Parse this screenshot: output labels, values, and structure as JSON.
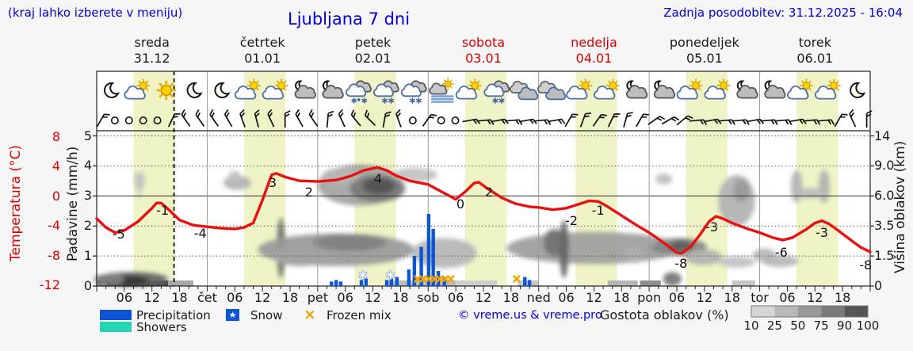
{
  "header": {
    "hint": "(kraj lahko izberete v meniju)",
    "title": "Ljubljana 7 dni",
    "updated": "Zadnja posodobitev: 31.12.2025 - 16:04"
  },
  "days": [
    {
      "name": "sreda",
      "date": "31.12",
      "red": false
    },
    {
      "name": "četrtek",
      "date": "01.01",
      "red": false
    },
    {
      "name": "petek",
      "date": "02.01",
      "red": false
    },
    {
      "name": "sobota",
      "date": "03.01",
      "red": true
    },
    {
      "name": "nedelja",
      "date": "04.01",
      "red": true
    },
    {
      "name": "ponedeljek",
      "date": "05.01",
      "red": false
    },
    {
      "name": "torek",
      "date": "06.01",
      "red": false
    }
  ],
  "axes": {
    "temp": {
      "title": "Temperatura (°C)",
      "ticks": [
        "8",
        "4",
        "0",
        "-4",
        "-8",
        "-12"
      ],
      "values": [
        8,
        4,
        0,
        -4,
        -8,
        -12
      ],
      "color": "#dd0000"
    },
    "precip": {
      "title": "Padavine (mm/h)",
      "ticks": [
        "5",
        "4",
        "3",
        "2",
        "1",
        "0"
      ],
      "values": [
        5,
        4,
        3,
        2,
        1,
        0
      ]
    },
    "cloud": {
      "title": "Višina oblakov (km)",
      "ticks": [
        "14",
        "9.0",
        "6.0",
        "3.5",
        "1.5",
        "0"
      ],
      "values": [
        14,
        9,
        6,
        3.5,
        1.5,
        0
      ]
    },
    "x_labels": [
      {
        "h": 6,
        "t": "06"
      },
      {
        "h": 12,
        "t": "12"
      },
      {
        "h": 18,
        "t": "18"
      },
      {
        "h": 24,
        "t": "čet"
      },
      {
        "h": 30,
        "t": "06"
      },
      {
        "h": 36,
        "t": "12"
      },
      {
        "h": 42,
        "t": "18"
      },
      {
        "h": 48,
        "t": "pet"
      },
      {
        "h": 54,
        "t": "06"
      },
      {
        "h": 60,
        "t": "12"
      },
      {
        "h": 66,
        "t": "18"
      },
      {
        "h": 72,
        "t": "sob"
      },
      {
        "h": 78,
        "t": "06"
      },
      {
        "h": 84,
        "t": "12"
      },
      {
        "h": 90,
        "t": "18"
      },
      {
        "h": 96,
        "t": "ned"
      },
      {
        "h": 102,
        "t": "06"
      },
      {
        "h": 108,
        "t": "12"
      },
      {
        "h": 114,
        "t": "18"
      },
      {
        "h": 120,
        "t": "pon"
      },
      {
        "h": 126,
        "t": "06"
      },
      {
        "h": 132,
        "t": "12"
      },
      {
        "h": 138,
        "t": "18"
      },
      {
        "h": 144,
        "t": "tor"
      },
      {
        "h": 150,
        "t": "06"
      },
      {
        "h": 156,
        "t": "12"
      },
      {
        "h": 162,
        "t": "18"
      }
    ]
  },
  "chart_data": {
    "type": "line",
    "title": "Ljubljana 7 dni meteogram",
    "x_unit": "hours from 31.12 00:00, 7 days",
    "now_line_h": 16.8,
    "day_bands_h": [
      [
        8,
        17
      ],
      [
        32,
        41
      ],
      [
        56,
        65
      ],
      [
        80,
        89
      ],
      [
        104,
        113
      ],
      [
        128,
        137
      ],
      [
        152,
        161
      ]
    ],
    "temperature_c": [
      [
        0,
        -3.0
      ],
      [
        2,
        -4.2
      ],
      [
        4,
        -4.9
      ],
      [
        6,
        -4.6
      ],
      [
        9,
        -3.4
      ],
      [
        12,
        -1.6
      ],
      [
        13,
        -0.9
      ],
      [
        14,
        -0.9
      ],
      [
        16,
        -2.0
      ],
      [
        18,
        -3.2
      ],
      [
        21,
        -3.9
      ],
      [
        24,
        -4.1
      ],
      [
        27,
        -4.3
      ],
      [
        30,
        -4.4
      ],
      [
        32,
        -4.2
      ],
      [
        34,
        -3.6
      ],
      [
        36,
        -0.5
      ],
      [
        38,
        2.9
      ],
      [
        39,
        3.1
      ],
      [
        41,
        2.6
      ],
      [
        44,
        2.1
      ],
      [
        48,
        2.0
      ],
      [
        52,
        2.2
      ],
      [
        55,
        2.7
      ],
      [
        58,
        3.5
      ],
      [
        61,
        3.9
      ],
      [
        63,
        3.5
      ],
      [
        65,
        2.8
      ],
      [
        68,
        2.1
      ],
      [
        72,
        1.6
      ],
      [
        75,
        0.6
      ],
      [
        78,
        -0.4
      ],
      [
        80,
        0.6
      ],
      [
        82,
        1.8
      ],
      [
        83,
        1.9
      ],
      [
        85,
        1.0
      ],
      [
        88,
        -0.2
      ],
      [
        91,
        -1.0
      ],
      [
        94,
        -1.4
      ],
      [
        96,
        -1.5
      ],
      [
        99,
        -1.8
      ],
      [
        102,
        -1.6
      ],
      [
        105,
        -1.0
      ],
      [
        107,
        -0.6
      ],
      [
        109,
        -0.7
      ],
      [
        111,
        -1.4
      ],
      [
        114,
        -2.6
      ],
      [
        117,
        -3.8
      ],
      [
        120,
        -4.9
      ],
      [
        123,
        -6.2
      ],
      [
        126,
        -7.6
      ],
      [
        127,
        -7.7
      ],
      [
        129,
        -6.8
      ],
      [
        131,
        -5.2
      ],
      [
        133,
        -3.4
      ],
      [
        134.5,
        -2.7
      ],
      [
        136,
        -3.0
      ],
      [
        138,
        -3.6
      ],
      [
        141,
        -4.3
      ],
      [
        144,
        -4.9
      ],
      [
        147,
        -5.6
      ],
      [
        149,
        -5.9
      ],
      [
        151,
        -5.6
      ],
      [
        154,
        -4.5
      ],
      [
        156,
        -3.6
      ],
      [
        157.5,
        -3.3
      ],
      [
        159,
        -3.7
      ],
      [
        161,
        -4.6
      ],
      [
        164,
        -6.0
      ],
      [
        166,
        -6.9
      ],
      [
        168,
        -7.5
      ]
    ],
    "curve_labels": [
      {
        "h": 4.8,
        "t": -5.3,
        "text": "-5"
      },
      {
        "h": 14.3,
        "t": -2.05,
        "text": "-1"
      },
      {
        "h": 22.5,
        "t": -5.2,
        "text": "-4"
      },
      {
        "h": 38.2,
        "t": 1.7,
        "text": "3"
      },
      {
        "h": 46.1,
        "t": 0.4,
        "text": "2"
      },
      {
        "h": 61.1,
        "t": 2.2,
        "text": "4"
      },
      {
        "h": 79,
        "t": -1.2,
        "text": "0"
      },
      {
        "h": 85.2,
        "t": 0.4,
        "text": "2"
      },
      {
        "h": 103.1,
        "t": -3.4,
        "text": "-2"
      },
      {
        "h": 108.9,
        "t": -2.05,
        "text": "-1"
      },
      {
        "h": 126.9,
        "t": -9.2,
        "text": "-8"
      },
      {
        "h": 133.6,
        "t": -4.3,
        "text": "-3"
      },
      {
        "h": 148.7,
        "t": -7.7,
        "text": "-6"
      },
      {
        "h": 157.5,
        "t": -5.0,
        "text": "-3"
      },
      {
        "h": 167.0,
        "t": -9.4,
        "text": "-8"
      }
    ],
    "precip_mm_h": [
      [
        51,
        0.15
      ],
      [
        52,
        0.2
      ],
      [
        53,
        0.15
      ],
      [
        57.5,
        0.2
      ],
      [
        58.5,
        0.25
      ],
      [
        63,
        0.2
      ],
      [
        64,
        0.25
      ],
      [
        65.2,
        0.3
      ],
      [
        67.8,
        0.55
      ],
      [
        69,
        1.0
      ],
      [
        70.5,
        1.3
      ],
      [
        72.1,
        2.4
      ],
      [
        73.1,
        1.9
      ],
      [
        74.2,
        0.5
      ],
      [
        75.5,
        0.3
      ],
      [
        93,
        0.3
      ],
      [
        94,
        0.2
      ]
    ],
    "snow_marks_h": [
      57.8,
      63.8
    ],
    "frozen_marks_h": [
      69.7,
      70.9,
      72.1,
      73.3,
      74.5,
      75.7,
      76.9,
      91.2
    ],
    "cloud_blobs": [
      [
        9.3,
        7.5,
        1.2,
        0.9,
        22
      ],
      [
        9.3,
        6.2,
        0.6,
        0.4,
        15
      ],
      [
        7.5,
        0.3,
        8,
        0.4,
        70
      ],
      [
        6.3,
        0.25,
        5,
        0.28,
        92
      ],
      [
        3.5,
        0.35,
        2.5,
        0.3,
        55
      ],
      [
        30.5,
        7.3,
        3,
        0.7,
        30
      ],
      [
        30,
        8.0,
        1.4,
        0.5,
        22
      ],
      [
        40,
        2.3,
        0.9,
        1.9,
        62
      ],
      [
        57,
        7.2,
        9,
        2.0,
        38
      ],
      [
        61,
        6.8,
        6,
        1.3,
        60
      ],
      [
        61.3,
        7.0,
        3.5,
        0.8,
        78
      ],
      [
        53,
        8.0,
        4,
        0.8,
        28
      ],
      [
        69,
        8.1,
        5,
        0.7,
        22
      ],
      [
        52,
        2.0,
        17,
        1.0,
        42
      ],
      [
        55,
        2.4,
        8,
        0.55,
        55
      ],
      [
        44,
        1.6,
        6,
        0.6,
        38
      ],
      [
        75.5,
        1.8,
        7,
        0.9,
        28
      ],
      [
        108,
        2.1,
        19,
        1.0,
        40
      ],
      [
        99.5,
        2.4,
        2.5,
        0.9,
        62
      ],
      [
        101.5,
        2.2,
        1,
        1.8,
        68
      ],
      [
        126.5,
        2.1,
        6,
        0.6,
        52
      ],
      [
        127,
        2.15,
        2.5,
        0.4,
        72
      ],
      [
        123.2,
        7.7,
        1.8,
        0.55,
        24
      ],
      [
        139,
        5.8,
        4,
        2.3,
        30
      ],
      [
        140,
        6.6,
        1.8,
        1.1,
        42
      ],
      [
        145,
        1.6,
        2.5,
        0.4,
        28
      ],
      [
        148.5,
        1.25,
        4,
        0.3,
        28
      ],
      [
        139,
        1.2,
        4,
        0.28,
        22
      ],
      [
        152,
        7.0,
        1.2,
        1.6,
        30
      ],
      [
        158,
        7.0,
        1.2,
        1.6,
        30
      ],
      [
        155,
        6.3,
        3.3,
        0.5,
        26
      ],
      [
        125,
        0.35,
        2,
        0.35,
        60
      ],
      [
        116.8,
        1.65,
        2.2,
        0.5,
        32
      ],
      [
        131.8,
        1.5,
        4,
        0.45,
        30
      ]
    ],
    "ground_strip": [
      [
        0,
        2.2,
        50
      ],
      [
        2.2,
        15.5,
        80
      ],
      [
        15.5,
        21,
        35
      ],
      [
        63,
        78,
        25
      ],
      [
        78,
        87,
        16
      ],
      [
        91.5,
        96,
        20
      ],
      [
        111,
        117.5,
        28
      ],
      [
        118,
        122.5,
        48
      ],
      [
        138,
        143,
        20
      ]
    ],
    "weather_icons": [
      "moon",
      "sun-cloud",
      "sun",
      "moon",
      "moon",
      "sun-cloud",
      "sun-cloud",
      "moon-cloud",
      "moon-cloud",
      "sleet-cloud",
      "snow-cloud",
      "snow-cloud",
      "fog-sun",
      "sun-cloud",
      "snow-cloud",
      "clouds",
      "clouds",
      "sun-cloud",
      "sun-cloud",
      "moon-cloud",
      "moon-cloud",
      "sun-cloud",
      "sun-cloud",
      "moon-cloud",
      "moon-cloud",
      "sun-cloud",
      "sun-cloud",
      "moon"
    ],
    "wind_barbs": [
      30,
      "c",
      "c",
      "c",
      "c",
      25,
      -35,
      -35,
      -35,
      -30,
      -20,
      -15,
      -25,
      0,
      -30,
      -35,
      5,
      -25,
      -40,
      -45,
      10,
      -20,
      "c",
      35,
      "c",
      "c",
      80,
      85,
      80,
      85,
      80,
      85,
      80,
      30,
      20,
      35,
      25,
      15,
      30,
      55,
      60,
      50,
      85,
      80,
      85,
      85,
      80,
      85,
      85,
      80,
      85,
      85,
      30,
      -25,
      0
    ],
    "colors": {
      "curve": "#e81010",
      "precip": "#0b55d6",
      "showers": "#25d3b5",
      "frozen": "#f0a500",
      "day_band": "#eff3c5",
      "accent_text": "#0000dd",
      "red_text": "#dd0000"
    }
  },
  "legend": {
    "items": [
      {
        "label": "Precipitation",
        "swatch": "rect-blue"
      },
      {
        "label": "Snow",
        "swatch": "star"
      },
      {
        "label": "Frozen mix",
        "swatch": "x"
      },
      {
        "label": "Showers",
        "swatch": "rect-cyan"
      }
    ],
    "snow_glyph": "★",
    "frozen_glyph": "×"
  },
  "credit": {
    "text": "© vreme.us & vreme.pro"
  },
  "colorbar": {
    "title": "Gostota oblakov (%)",
    "labels": [
      "10",
      "25",
      "50",
      "75",
      "90",
      "100"
    ],
    "colors": [
      "#d6d6d6",
      "#b8b8b8",
      "#999999",
      "#7a7a7a",
      "#555555"
    ]
  }
}
